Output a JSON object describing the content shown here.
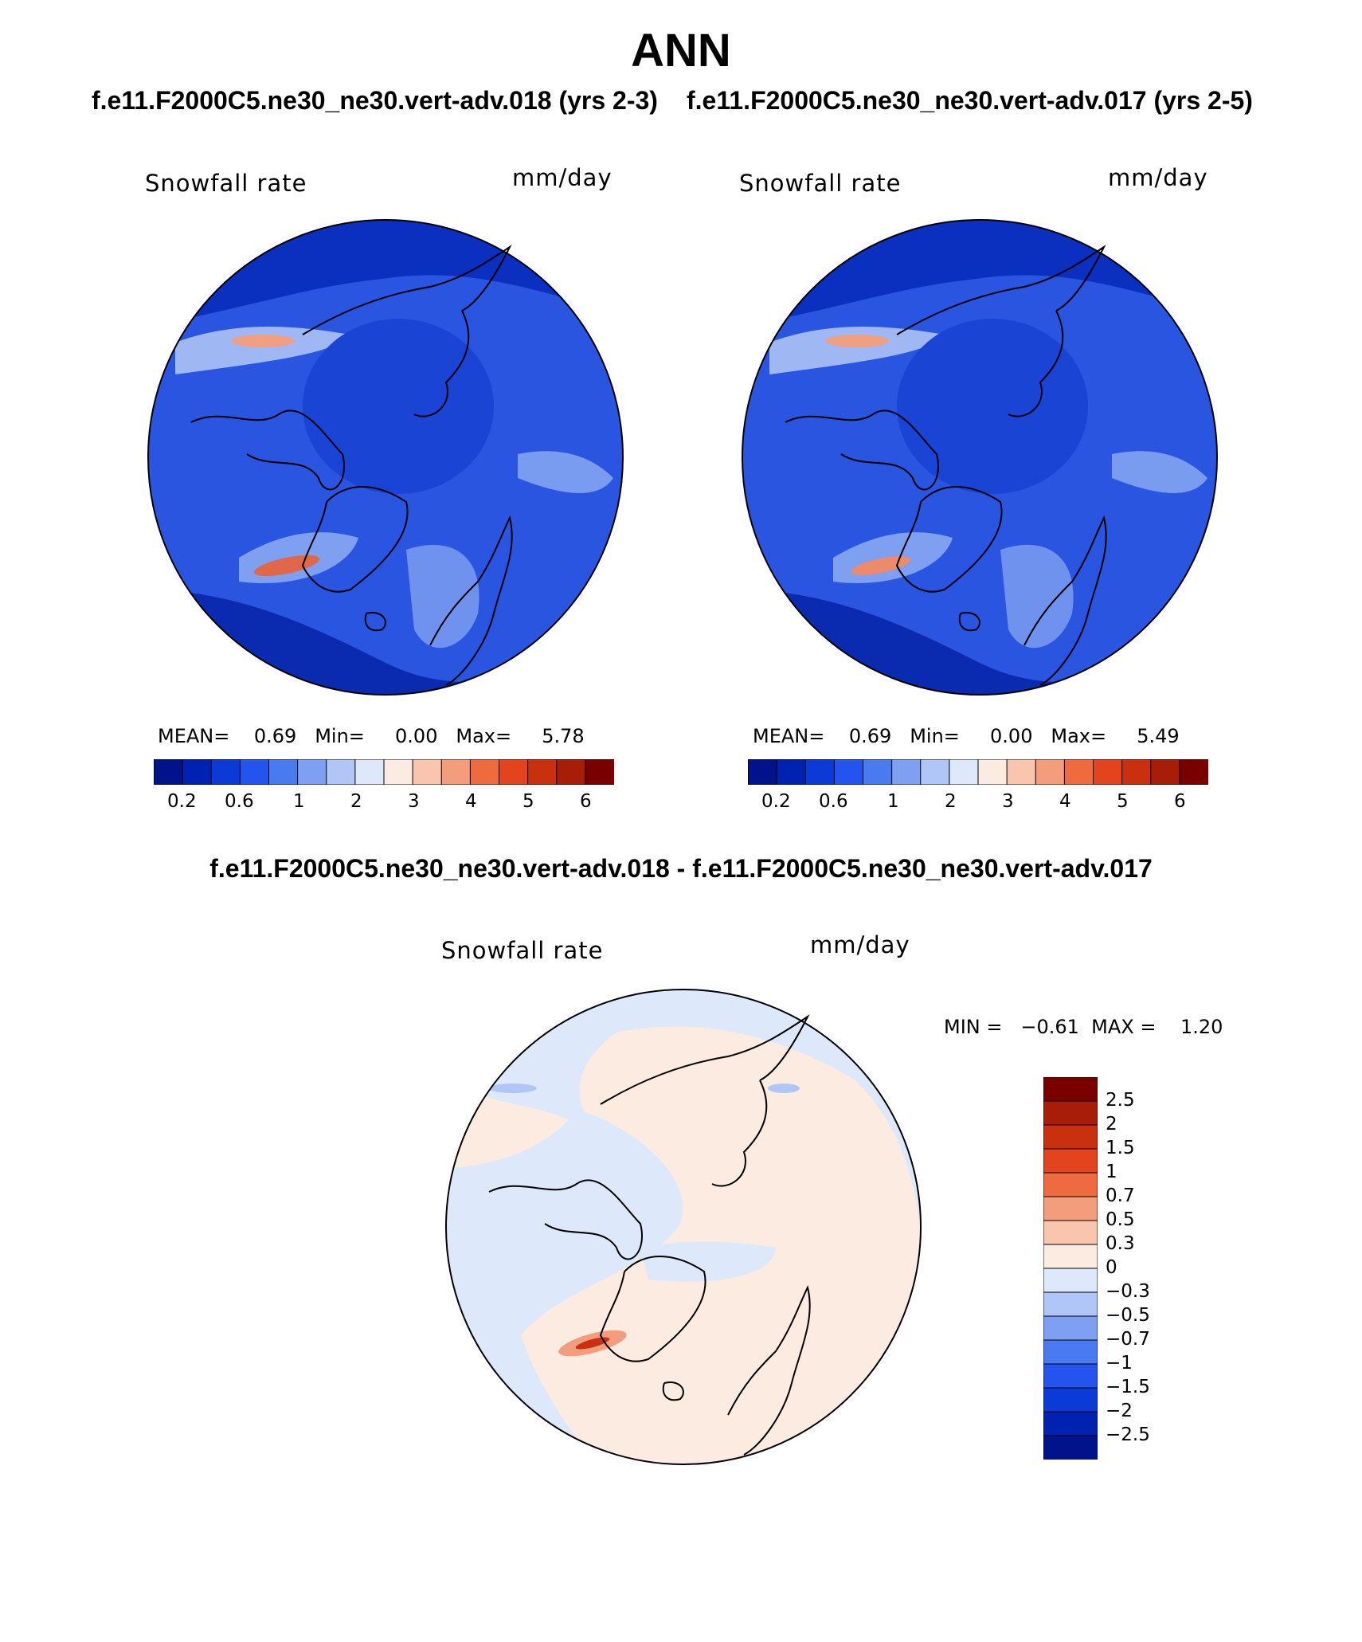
{
  "title": "ANN",
  "subtitles": {
    "left": "f.e11.F2000C5.ne30_ne30.vert-adv.018 (yrs 2-3)",
    "right": "f.e11.F2000C5.ne30_ne30.vert-adv.017 (yrs 2-5)"
  },
  "diff_title": "f.e11.F2000C5.ne30_ne30.vert-adv.018 - f.e11.F2000C5.ne30_ne30.vert-adv.017",
  "panels": [
    {
      "variable": "Snowfall rate",
      "units": "mm/day",
      "stats": "MEAN=    0.69   Min=     0.00   Max=     5.78"
    },
    {
      "variable": "Snowfall rate",
      "units": "mm/day",
      "stats": "MEAN=    0.69   Min=     0.00   Max=     5.49"
    },
    {
      "variable": "Snowfall rate",
      "units": "mm/day",
      "stats": "MIN =   −0.61  MAX =    1.20"
    }
  ],
  "abs_colorbar": {
    "colors": [
      "#00138a",
      "#0022b0",
      "#0b3ad6",
      "#2355ee",
      "#4a7af0",
      "#7fa0f2",
      "#b0c6f6",
      "#dde8fb",
      "#fcebe0",
      "#f9c6ad",
      "#f39d7c",
      "#ee6b3f",
      "#e3441d",
      "#c9300f",
      "#a81d08",
      "#7a0000"
    ],
    "tick_labels": [
      "0.2",
      "0.6",
      "1",
      "2",
      "3",
      "4",
      "5",
      "6"
    ]
  },
  "diff_colorbar": {
    "colors": [
      "#00138a",
      "#0022b0",
      "#0b3ad6",
      "#2355ee",
      "#4a7af0",
      "#7fa0f2",
      "#b0c6f6",
      "#dde8fb",
      "#fcebe0",
      "#f9c6ad",
      "#f39d7c",
      "#ee6b3f",
      "#e3441d",
      "#c9300f",
      "#a81d08",
      "#7a0000"
    ],
    "tick_labels": [
      "2.5",
      "2",
      "1.5",
      "1",
      "0.7",
      "0.5",
      "0.3",
      "0",
      "−0.3",
      "−0.5",
      "−0.7",
      "−1",
      "−1.5",
      "−2",
      "−2.5"
    ]
  },
  "colors": {
    "ocean_deep": "#1e45d0",
    "field_mid": "#3e6ae8",
    "field_light": "#86a6ef",
    "high_red": "#e06848",
    "diff_neg": "#dde8fb",
    "diff_pos": "#fcebe0"
  }
}
